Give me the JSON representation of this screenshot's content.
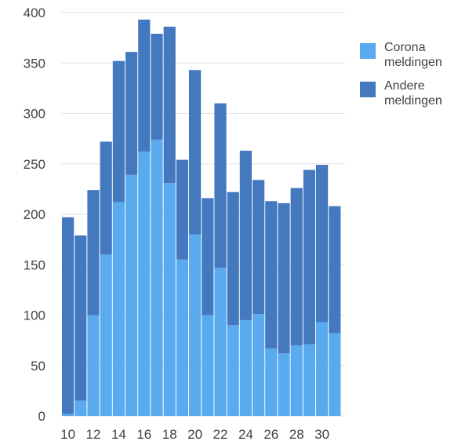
{
  "chart_data": {
    "type": "bar",
    "stacked": true,
    "x": [
      10,
      11,
      12,
      13,
      14,
      15,
      16,
      17,
      18,
      19,
      20,
      21,
      22,
      23,
      24,
      25,
      26,
      27,
      28,
      29,
      30,
      31
    ],
    "x_tick_labels": [
      "10",
      "12",
      "14",
      "16",
      "18",
      "20",
      "22",
      "24",
      "26",
      "28",
      "30"
    ],
    "series": [
      {
        "name_lines": [
          "Corona",
          "meldingen"
        ],
        "color": "#5aaaf0",
        "values": [
          2,
          15,
          100,
          160,
          212,
          239,
          262,
          274,
          231,
          155,
          180,
          100,
          147,
          90,
          95,
          101,
          67,
          62,
          70,
          71,
          93,
          82
        ]
      },
      {
        "name_lines": [
          "Andere",
          "meldingen"
        ],
        "color": "#4479c0",
        "values": [
          195,
          164,
          124,
          112,
          140,
          122,
          131,
          105,
          155,
          99,
          163,
          116,
          163,
          132,
          168,
          133,
          146,
          149,
          156,
          173,
          156,
          126
        ]
      }
    ],
    "ylim": [
      0,
      400
    ],
    "y_ticks": [
      0,
      50,
      100,
      150,
      200,
      250,
      300,
      350,
      400
    ],
    "grid": true,
    "legend_position": "right",
    "title": "",
    "xlabel": "",
    "ylabel": ""
  }
}
